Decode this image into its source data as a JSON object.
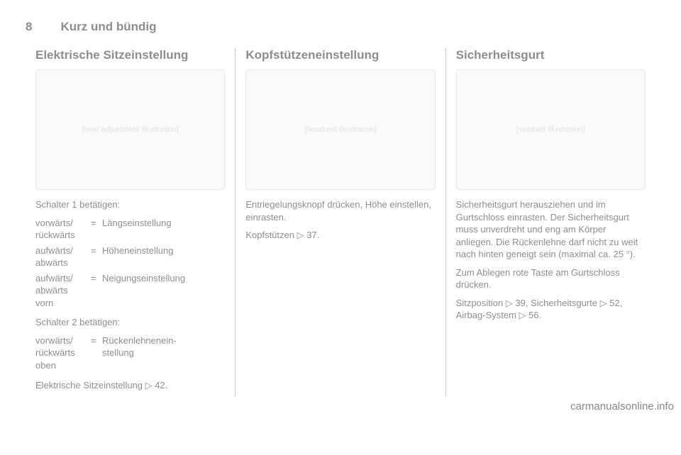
{
  "header": {
    "page_num": "8",
    "chapter": "Kurz und bündig"
  },
  "col1": {
    "title": "Elektrische Sitzeinstellung",
    "illus_alt": "[seat adjustment illustration]",
    "switch1_intro": "Schalter 1 betätigen:",
    "switch1_rows": [
      {
        "left": "vorwärts/\nrückwärts",
        "right": "Längseinstellung"
      },
      {
        "left": "aufwärts/\nabwärts",
        "right": "Höheneinstellung"
      },
      {
        "left": "aufwärts/\nabwärts\nvorn",
        "right": "Neigungseinstellung"
      }
    ],
    "switch2_intro": "Schalter 2 betätigen:",
    "switch2_rows": [
      {
        "left": "vorwärts/\nrückwärts\noben",
        "right": "Rückenlehnenein-\nstellung"
      }
    ],
    "ref": "Elektrische Sitzeinstellung ▷ 42."
  },
  "col2": {
    "title": "Kopfstützeneinstellung",
    "illus_alt": "[headrest illustration]",
    "p1": "Entriegelungsknopf drücken, Höhe einstellen, einrasten.",
    "ref": "Kopfstützen ▷ 37."
  },
  "col3": {
    "title": "Sicherheitsgurt",
    "illus_alt": "[seatbelt illustration]",
    "p1": "Sicherheitsgurt herausziehen und im Gurtschloss einrasten. Der Sicherheitsgurt muss unverdreht und eng am Körper anliegen. Die Rückenlehne darf nicht zu weit nach hinten geneigt sein (maximal ca. 25 °).",
    "p2": "Zum Ablegen rote Taste am Gurtschloss drücken.",
    "ref": "Sitzposition ▷ 39, Sicherheitsgurte ▷ 52, Airbag-System ▷ 56."
  },
  "watermark": "carmanualsonline.info"
}
